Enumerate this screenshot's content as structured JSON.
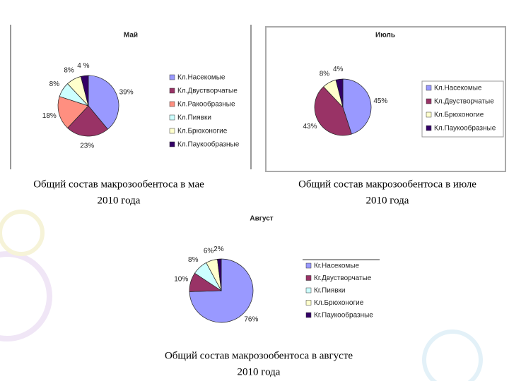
{
  "chart_data": [
    {
      "type": "pie",
      "title": "Май",
      "categories": [
        "Кл.Насекомые",
        "Кл.Двустворчатые",
        "Кл.Ракообразные",
        "Кл.Пиявки",
        "Кл.Брюхоногие",
        "Кл.Паукообразные"
      ],
      "values": [
        39,
        23,
        18,
        8,
        8,
        4
      ],
      "value_labels": [
        "39%",
        "23%",
        "18%",
        "8%",
        "8%",
        "4 %"
      ],
      "colors": [
        "#9999ff",
        "#993366",
        "#ff8f80",
        "#ccffff",
        "#ffffcc",
        "#330066"
      ],
      "caption": [
        "Общий состав макрозообентоса в мае",
        "2010 года"
      ]
    },
    {
      "type": "pie",
      "title": "Июль",
      "categories": [
        "Кл.Насекомые",
        "Кл.Двустворчатые",
        "Кл.Брюхоногие",
        "Кл.Паукообразные"
      ],
      "values": [
        45,
        43,
        8,
        4
      ],
      "value_labels": [
        "45%",
        "43%",
        "8%",
        "4%"
      ],
      "colors": [
        "#9999ff",
        "#993366",
        "#ffffcc",
        "#330066"
      ],
      "caption": [
        "Общий состав макрозообентоса в июле",
        "2010 года"
      ]
    },
    {
      "type": "pie",
      "title": "Август",
      "categories": [
        "Кг.Насекомые",
        "Кг.Двустворчатые",
        "Кг.Пиявки",
        "Кл.Брюхоногие",
        "Кг.Паукообразные"
      ],
      "values": [
        76,
        10,
        8,
        6,
        2
      ],
      "value_labels": [
        "76%",
        "10%",
        "8%",
        "6%",
        "2%"
      ],
      "colors": [
        "#9999ff",
        "#993366",
        "#ccffff",
        "#ffffcc",
        "#330066"
      ],
      "caption": [
        "Общий состав макрозообентоса в августе",
        "2010 года"
      ]
    }
  ]
}
